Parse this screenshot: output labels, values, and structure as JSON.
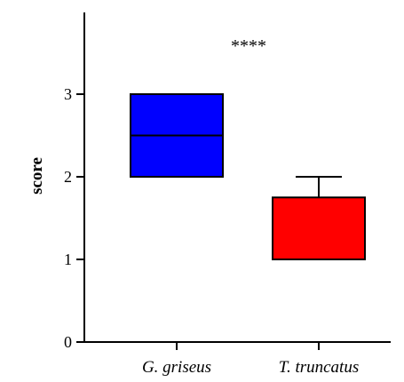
{
  "chart_data": {
    "type": "box",
    "title": "",
    "xlabel": "",
    "ylabel": "score",
    "ylim": [
      0,
      4
    ],
    "yticks": [
      0,
      1,
      2,
      3
    ],
    "categories": [
      "G. griseus",
      "T. truncatus"
    ],
    "boxes": [
      {
        "category": "G. griseus",
        "min": 2,
        "q1": 2,
        "median": 2.5,
        "q3": 3,
        "max": 3,
        "color": "#0000ff"
      },
      {
        "category": "T. truncatus",
        "min": 1,
        "q1": 1,
        "median": 1,
        "q3": 1.75,
        "max": 2,
        "color": "#ff0000"
      }
    ],
    "annotation": "****",
    "grid": false,
    "legend": "none"
  }
}
